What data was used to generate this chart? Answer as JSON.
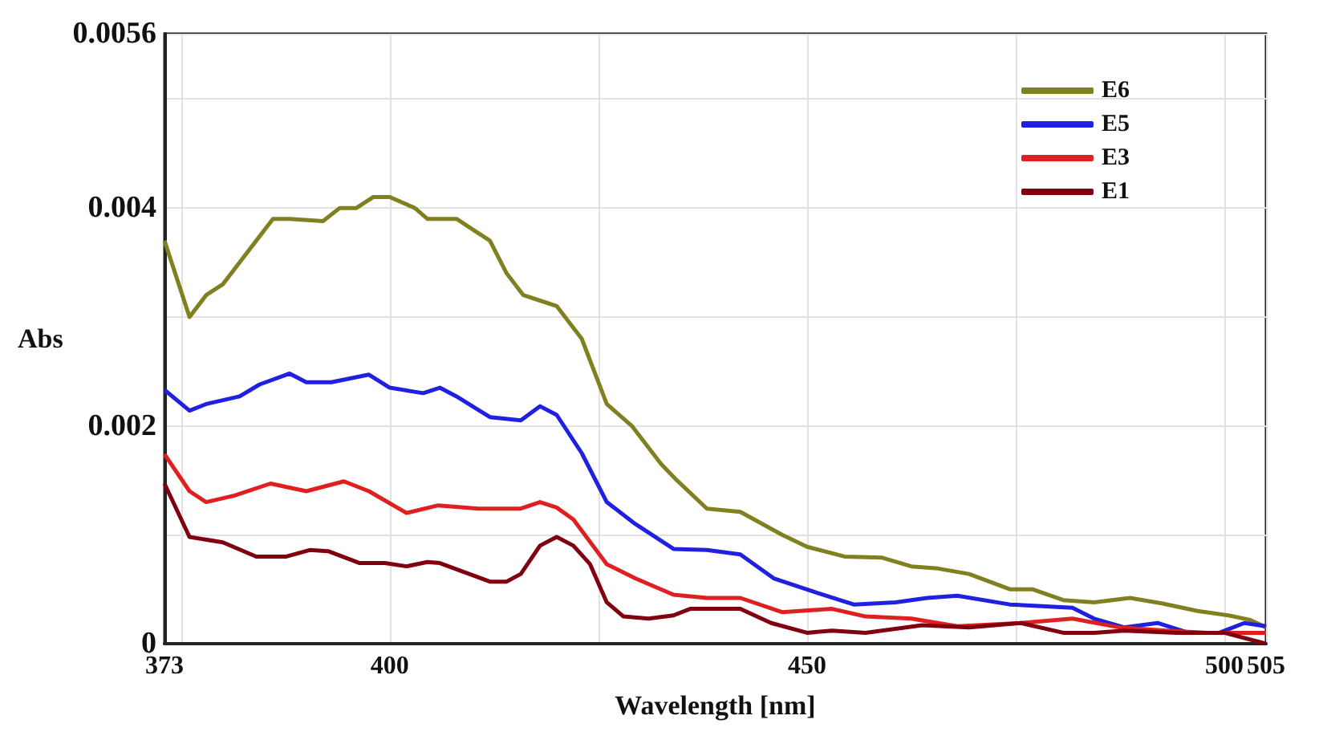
{
  "chart_data": {
    "type": "line",
    "xlabel": "Wavelength [nm]",
    "ylabel": "Abs",
    "xlim": [
      373,
      505
    ],
    "xticks": [
      373,
      {
        "value": 375,
        "label": null
      },
      400,
      {
        "value": 425,
        "label": null
      },
      450,
      {
        "value": 475,
        "label": null
      },
      500,
      505
    ],
    "ylim": [
      0,
      0.0056
    ],
    "yticks": [
      0,
      {
        "value": 0.001,
        "label": null
      },
      0.002,
      {
        "value": 0.003,
        "label": null
      },
      0.004,
      {
        "value": 0.005,
        "label": null
      },
      0.0056
    ],
    "grid": true,
    "legend": "top right",
    "marker": "none",
    "line_style": "solid",
    "series": [
      {
        "name": "E6",
        "color": "#808020",
        "x": [
          373,
          376,
          378,
          380,
          382,
          384,
          386,
          388,
          392,
          394,
          396,
          398,
          400,
          403,
          404.5,
          408,
          410,
          412,
          414,
          416,
          418,
          420,
          422,
          423,
          426,
          429,
          432.5,
          434.4,
          438,
          442,
          447,
          450,
          454.5,
          459,
          462.5,
          465.7,
          469.4,
          474.3,
          477,
          480.7,
          484.4,
          488.7,
          492.5,
          496.8,
          500.5,
          503,
          505
        ],
        "values": [
          0.0037,
          0.003,
          0.0032,
          0.0033,
          0.0035,
          0.0037,
          0.0039,
          0.0039,
          0.00388,
          0.004,
          0.004,
          0.0041,
          0.0041,
          0.004,
          0.0039,
          0.0039,
          0.0038,
          0.0037,
          0.0034,
          0.0032,
          0.00315,
          0.0031,
          0.0029,
          0.0028,
          0.0022,
          0.002,
          0.00165,
          0.0015,
          0.00124,
          0.00121,
          0.001,
          0.00089,
          0.0008,
          0.00079,
          0.00071,
          0.00069,
          0.00064,
          0.0005,
          0.0005,
          0.0004,
          0.00038,
          0.00042,
          0.00037,
          0.0003,
          0.00026,
          0.00022,
          0.00015
        ]
      },
      {
        "name": "E5",
        "color": "#2020e0",
        "x": [
          373,
          376,
          378,
          382,
          384.4,
          388,
          390,
          393,
          397.5,
          400,
          404,
          406,
          408,
          412,
          415.7,
          418,
          420,
          423,
          426,
          429.4,
          434,
          438,
          442,
          446,
          450.7,
          455.6,
          460.6,
          464.4,
          468,
          474.3,
          481.8,
          484.4,
          488,
          492,
          495.7,
          499.4,
          502.4,
          505
        ],
        "values": [
          0.00233,
          0.00214,
          0.0022,
          0.00227,
          0.00238,
          0.00248,
          0.0024,
          0.0024,
          0.00247,
          0.00235,
          0.0023,
          0.00235,
          0.00227,
          0.00208,
          0.00205,
          0.00218,
          0.0021,
          0.00175,
          0.0013,
          0.0011,
          0.00087,
          0.00086,
          0.00082,
          0.0006,
          0.00048,
          0.00036,
          0.00038,
          0.00042,
          0.00044,
          0.00036,
          0.00033,
          0.00023,
          0.00015,
          0.00019,
          0.0001,
          0.0001,
          0.00019,
          0.00016
        ]
      },
      {
        "name": "E3",
        "color": "#e02020",
        "x": [
          373,
          376,
          378,
          381.4,
          385.7,
          390,
          394.5,
          397.5,
          402,
          405.8,
          410.6,
          415.7,
          418,
          420,
          422,
          426,
          429.4,
          434,
          438,
          442,
          447,
          453,
          457,
          462.5,
          468,
          475.6,
          481.8,
          487.4,
          493,
          498,
          501.8,
          505
        ],
        "values": [
          0.00174,
          0.0014,
          0.0013,
          0.00136,
          0.00147,
          0.0014,
          0.00149,
          0.0014,
          0.0012,
          0.00127,
          0.00124,
          0.00124,
          0.0013,
          0.00125,
          0.00114,
          0.00073,
          0.0006,
          0.00045,
          0.00042,
          0.00042,
          0.00029,
          0.00032,
          0.00025,
          0.00023,
          0.00016,
          0.00019,
          0.00023,
          0.00015,
          0.00012,
          0.0001,
          0.0001,
          0.0001
        ]
      },
      {
        "name": "E1",
        "color": "#800010",
        "x": [
          373,
          376,
          380,
          384,
          387.6,
          390.4,
          392.6,
          396.4,
          399.4,
          402,
          404.5,
          406,
          408.8,
          412,
          414,
          415.7,
          418,
          420,
          422,
          424,
          426,
          428,
          431,
          434,
          436,
          438,
          442,
          445.7,
          450,
          453,
          457,
          463.8,
          469.4,
          475.6,
          480.7,
          484.4,
          488,
          494.3,
          500,
          505
        ],
        "values": [
          0.00147,
          0.00098,
          0.00093,
          0.0008,
          0.0008,
          0.00086,
          0.00085,
          0.00074,
          0.00074,
          0.00071,
          0.00075,
          0.00074,
          0.00066,
          0.00057,
          0.00057,
          0.00064,
          0.0009,
          0.00098,
          0.0009,
          0.00073,
          0.00038,
          0.00025,
          0.00023,
          0.00026,
          0.00032,
          0.00032,
          0.00032,
          0.00019,
          0.0001,
          0.00012,
          0.0001,
          0.00017,
          0.00015,
          0.00019,
          0.0001,
          0.0001,
          0.00012,
          0.0001,
          0.0001,
          0
        ]
      }
    ]
  }
}
